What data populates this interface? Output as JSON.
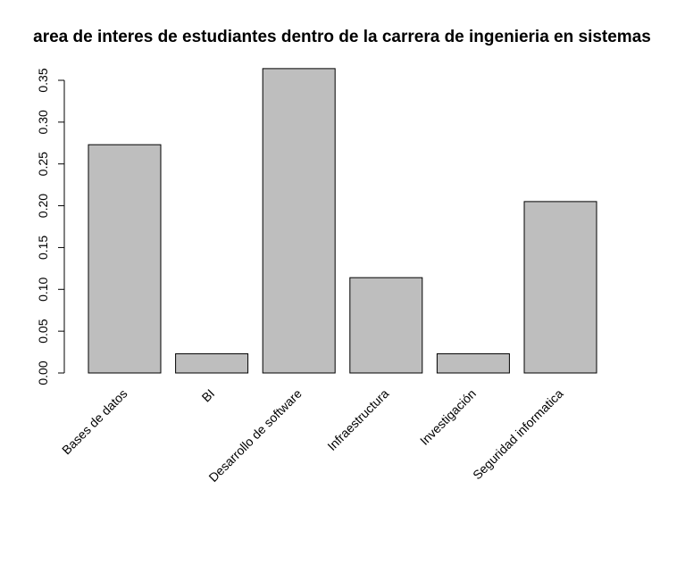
{
  "chart_data": {
    "type": "bar",
    "title": "area de interes de estudiantes dentro de la carrera de ingenieria en sistemas",
    "xlabel": "",
    "ylabel": "",
    "categories": [
      "Bases de datos",
      "BI",
      "Desarrollo de software",
      "Infraestructura",
      "Investigación",
      "Seguridad informatica"
    ],
    "values": [
      0.273,
      0.023,
      0.364,
      0.114,
      0.023,
      0.205
    ],
    "ylim": [
      0,
      0.35
    ],
    "yticks": [
      "0.00",
      "0.05",
      "0.10",
      "0.15",
      "0.20",
      "0.25",
      "0.30",
      "0.35"
    ],
    "grid": false,
    "bar_color": "#bebebe",
    "border_color": "#000000"
  }
}
